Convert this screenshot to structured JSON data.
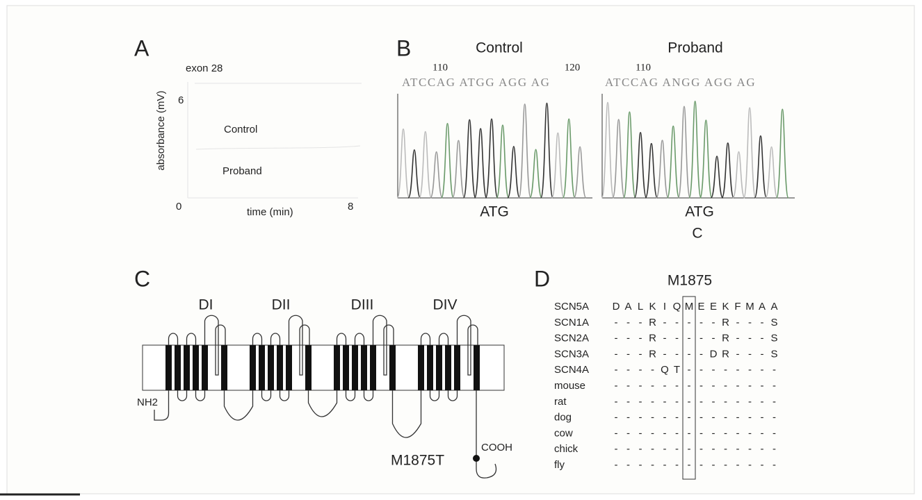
{
  "panel_a": {
    "label": "A",
    "title": "exon 28",
    "y_label": "absorbance (mV)",
    "y_tick": "6",
    "x_ticks": [
      "0",
      "8"
    ],
    "x_label": "time (min)",
    "traces": [
      "Control",
      "Proband"
    ]
  },
  "panel_b": {
    "label": "B",
    "control": {
      "title": "Control",
      "positions": [
        "110",
        "120"
      ],
      "sequence": "ATCCAG ATGG AGG AG",
      "codon": "ATG"
    },
    "proband": {
      "title": "Proband",
      "positions": [
        "110"
      ],
      "sequence": "ATCCAG ANGG AGG AG",
      "codon": "ATG",
      "variant": "C"
    }
  },
  "panel_c": {
    "label": "C",
    "domains": [
      "DI",
      "DII",
      "DIII",
      "DIV"
    ],
    "n_terminus": "NH2",
    "c_terminus": "COOH",
    "mutation": "M1875T"
  },
  "panel_d": {
    "label": "D",
    "title": "M1875",
    "rows": [
      {
        "name": "SCN5A",
        "residues": [
          "D",
          "A",
          "L",
          "K",
          "I",
          "Q",
          "M",
          "E",
          "E",
          "K",
          "F",
          "M",
          "A",
          "A"
        ]
      },
      {
        "name": "SCN1A",
        "residues": [
          "-",
          "-",
          "-",
          "R",
          "-",
          "-",
          "-",
          "-",
          "-",
          "R",
          "-",
          "-",
          "-",
          "S"
        ]
      },
      {
        "name": "SCN2A",
        "residues": [
          "-",
          "-",
          "-",
          "R",
          "-",
          "-",
          "-",
          "-",
          "-",
          "R",
          "-",
          "-",
          "-",
          "S"
        ]
      },
      {
        "name": "SCN3A",
        "residues": [
          "-",
          "-",
          "-",
          "R",
          "-",
          "-",
          "-",
          "-",
          "D",
          "R",
          "-",
          "-",
          "-",
          "S"
        ]
      },
      {
        "name": "SCN4A",
        "residues": [
          "-",
          "-",
          "-",
          "-",
          "Q",
          "T",
          "-",
          "-",
          "-",
          "-",
          "-",
          "-",
          "-",
          "-"
        ]
      },
      {
        "name": "mouse",
        "residues": [
          "-",
          "-",
          "-",
          "-",
          "-",
          "-",
          "-",
          "-",
          "-",
          "-",
          "-",
          "-",
          "-",
          "-"
        ]
      },
      {
        "name": "rat",
        "residues": [
          "-",
          "-",
          "-",
          "-",
          "-",
          "-",
          "-",
          "-",
          "-",
          "-",
          "-",
          "-",
          "-",
          "-"
        ]
      },
      {
        "name": "dog",
        "residues": [
          "-",
          "-",
          "-",
          "-",
          "-",
          "-",
          "-",
          "-",
          "-",
          "-",
          "-",
          "-",
          "-",
          "-"
        ]
      },
      {
        "name": "cow",
        "residues": [
          "-",
          "-",
          "-",
          "-",
          "-",
          "-",
          "-",
          "-",
          "-",
          "-",
          "-",
          "-",
          "-",
          "-"
        ]
      },
      {
        "name": "chick",
        "residues": [
          "-",
          "-",
          "-",
          "-",
          "-",
          "-",
          "-",
          "-",
          "-",
          "-",
          "-",
          "-",
          "-",
          "-"
        ]
      },
      {
        "name": "fly",
        "residues": [
          "-",
          "-",
          "-",
          "-",
          "-",
          "-",
          "-",
          "-",
          "-",
          "-",
          "-",
          "-",
          "-",
          "-"
        ]
      }
    ]
  }
}
